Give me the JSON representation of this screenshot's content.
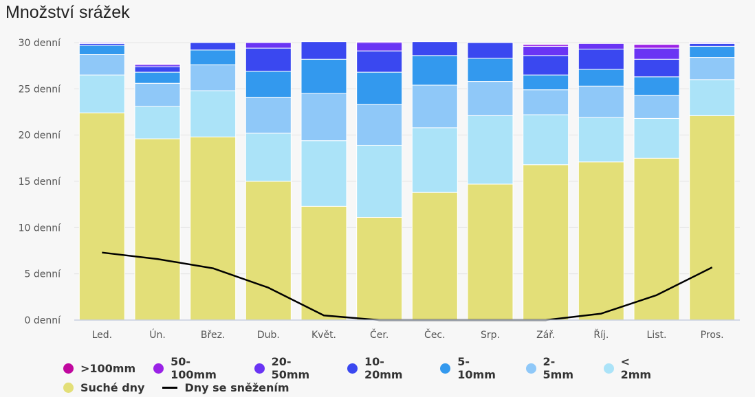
{
  "title": "Množství srážek",
  "colors": {
    "c100": "#c0089e",
    "c50_100": "#9a22e6",
    "c20_50": "#6a34f4",
    "c10_20": "#3a48f0",
    "c5_10": "#3399ee",
    "c2_5": "#8fc8f8",
    "c_lt2": "#abe3f8",
    "dry": "#e3df78",
    "snow": "#000000"
  },
  "legend": [
    {
      "label": ">100mm",
      "color": "#c0089e",
      "kind": "dot"
    },
    {
      "label": "50-100mm",
      "color": "#9a22e6",
      "kind": "dot"
    },
    {
      "label": "20-50mm",
      "color": "#6a34f4",
      "kind": "dot"
    },
    {
      "label": "10-20mm",
      "color": "#3a48f0",
      "kind": "dot"
    },
    {
      "label": "5-10mm",
      "color": "#3399ee",
      "kind": "dot"
    },
    {
      "label": "2-5mm",
      "color": "#8fc8f8",
      "kind": "dot"
    },
    {
      "label": "< 2mm",
      "color": "#abe3f8",
      "kind": "dot"
    },
    {
      "label": "Suché dny",
      "color": "#e3df78",
      "kind": "dot"
    },
    {
      "label": "Dny se sněžením",
      "color": "#000000",
      "kind": "line"
    }
  ],
  "chart_data": {
    "type": "bar",
    "stacked": true,
    "title": "Množství srážek",
    "categories": [
      "Led.",
      "Ún.",
      "Břez.",
      "Dub.",
      "Květ.",
      "Čer.",
      "Čec.",
      "Srp.",
      "Zář.",
      "Říj.",
      "List.",
      "Pros."
    ],
    "ylim": [
      0,
      30
    ],
    "yticks": [
      "0 denní",
      "5 denní",
      "10 denní",
      "15 denní",
      "20 denní",
      "25 denní",
      "30 denní"
    ],
    "grid": true,
    "legend_position": "bottom",
    "series": [
      {
        "name": "Suché dny",
        "values": [
          22.4,
          19.6,
          19.8,
          15.0,
          12.3,
          11.1,
          13.8,
          14.7,
          16.8,
          17.1,
          17.5,
          22.1
        ]
      },
      {
        "name": "< 2mm",
        "values": [
          4.1,
          3.5,
          5.0,
          5.2,
          7.1,
          7.8,
          7.0,
          7.4,
          5.4,
          4.8,
          4.3,
          3.9
        ]
      },
      {
        "name": "2-5mm",
        "values": [
          2.2,
          2.5,
          2.8,
          3.9,
          5.1,
          4.4,
          4.6,
          3.7,
          2.7,
          3.4,
          2.5,
          2.4
        ]
      },
      {
        "name": "5-10mm",
        "values": [
          1.0,
          1.2,
          1.6,
          2.8,
          3.7,
          3.5,
          3.2,
          2.5,
          1.6,
          1.8,
          2.0,
          1.2
        ]
      },
      {
        "name": "10-20mm",
        "values": [
          0.2,
          0.6,
          0.8,
          2.5,
          1.9,
          2.3,
          1.5,
          1.7,
          2.1,
          2.2,
          1.9,
          0.3
        ]
      },
      {
        "name": "20-50mm",
        "values": [
          0.1,
          0.2,
          0.0,
          0.6,
          0.0,
          0.9,
          0.0,
          0.0,
          1.0,
          0.6,
          1.2,
          0.1
        ]
      },
      {
        "name": "50-100mm",
        "values": [
          0.0,
          0.1,
          0.0,
          0.0,
          0.0,
          0.1,
          0.0,
          0.0,
          0.2,
          0.0,
          0.4,
          0.0
        ]
      },
      {
        "name": ">100mm",
        "values": [
          0,
          0,
          0,
          0,
          0,
          0,
          0,
          0,
          0,
          0,
          0,
          0
        ]
      }
    ],
    "line": {
      "name": "Dny se sněžením",
      "values": [
        7.3,
        6.6,
        5.6,
        3.5,
        0.5,
        0.0,
        0.0,
        0.0,
        0.0,
        0.7,
        2.7,
        5.7
      ]
    }
  }
}
